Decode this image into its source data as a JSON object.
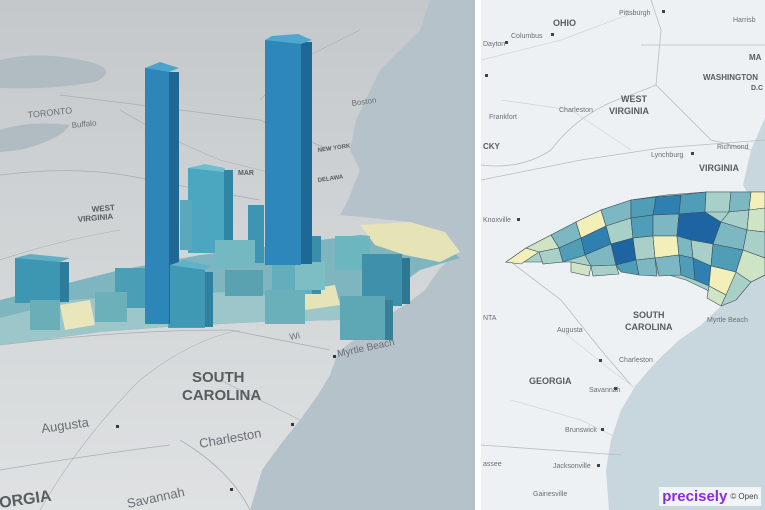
{
  "left_map": {
    "labels": {
      "toronto": "TORONTO",
      "buffalo": "Buffalo",
      "boston": "Boston",
      "new_york": "NEW YORK",
      "md": "MAR",
      "delaware": "DELAWA",
      "west_virginia_1": "WEST",
      "west_virginia_2": "VIRGINIA",
      "south_carolina_1": "SOUTH",
      "south_carolina_2": "CAROLINA",
      "augusta": "Augusta",
      "charleston": "Charleston",
      "savannah": "Savannah",
      "georgia": "ORGIA",
      "myrtle_beach": "Myrtle Beach",
      "wi": "Wi"
    }
  },
  "right_map": {
    "labels": {
      "ohio": "OHIO",
      "pittsburgh": "Pittsburgh",
      "harrisburg": "Harrisb",
      "columbus": "Columbus",
      "dayton": "Dayton",
      "ma": "MA",
      "washington": "WASHINGTON",
      "dc": "D.C",
      "west_virginia_1": "WEST",
      "west_virginia_2": "VIRGINIA",
      "frankfort": "Frankfort",
      "charleston_wv": "Charleston",
      "ky": "CKY",
      "lynchburg": "Lynchburg",
      "richmond": "Richmond",
      "virginia": "VIRGINIA",
      "knoxville": "Knoxville",
      "nta": "NTA",
      "augusta": "Augusta",
      "south_carolina_1": "SOUTH",
      "south_carolina_2": "CAROLINA",
      "myrtle_beach": "Myrtle Beach",
      "charleston_sc": "Charleston",
      "georgia": "GEORGIA",
      "savannah": "Savannah",
      "brunswick": "Brunswick",
      "jacksonville": "Jacksonville",
      "tassee": "assee",
      "gainesville": "Gainesville"
    }
  },
  "branding": {
    "logo": "precisely",
    "attribution": "© Open"
  },
  "colors": {
    "ocean": "#b9c5cb",
    "land_3d": "#d9dcdd",
    "ocean_2d": "#c8d6de",
    "land_2d": "#eef1f3",
    "choropleth": [
      "#f2efb8",
      "#cfe4c4",
      "#a8d0c8",
      "#7db8c2",
      "#4f9db7",
      "#2f7fb0",
      "#1f64a2"
    ],
    "brand": "#8a2be2"
  }
}
